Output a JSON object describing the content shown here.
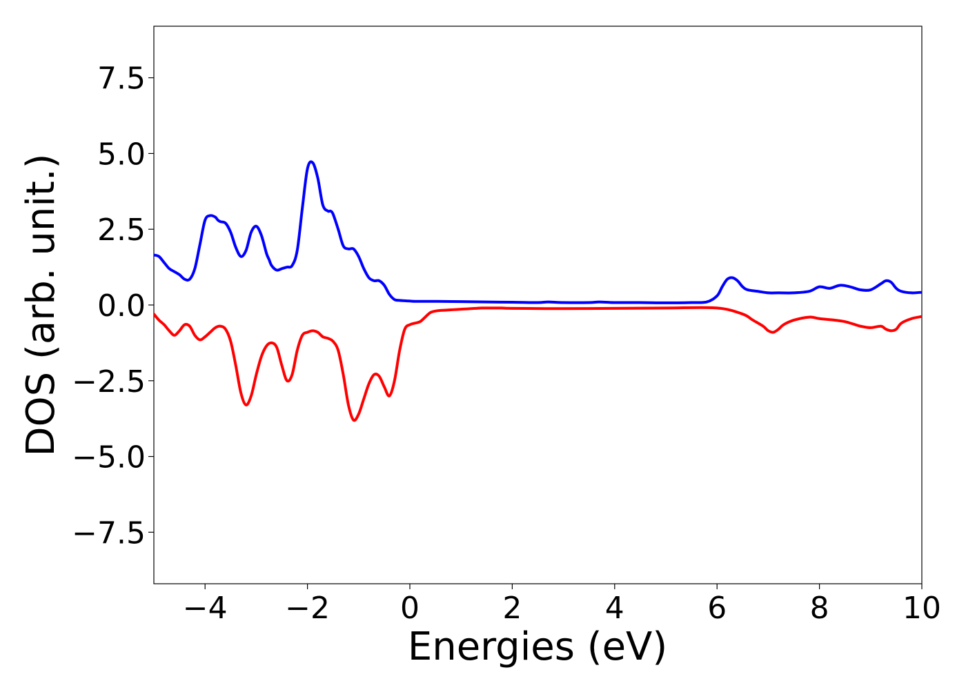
{
  "chart_data": {
    "type": "line",
    "title": "",
    "xlabel": "Energies (eV)",
    "ylabel": "DOS (arb. unit.)",
    "xlim": [
      -5,
      10
    ],
    "ylim": [
      -9.2,
      9.2
    ],
    "xticks": [
      -4,
      -2,
      0,
      2,
      4,
      6,
      8,
      10
    ],
    "xtick_labels": [
      "−4",
      "−2",
      "0",
      "2",
      "4",
      "6",
      "8",
      "10"
    ],
    "yticks": [
      -7.5,
      -5.0,
      -2.5,
      0.0,
      2.5,
      5.0,
      7.5
    ],
    "ytick_labels": [
      "−7.5",
      "−5.0",
      "−2.5",
      "0.0",
      "2.5",
      "5.0",
      "7.5"
    ],
    "grid": false,
    "legend": "none",
    "series": [
      {
        "color": "#0000ff",
        "x": [
          -5.0,
          -4.9,
          -4.8,
          -4.7,
          -4.6,
          -4.5,
          -4.4,
          -4.3,
          -4.2,
          -4.1,
          -4.0,
          -3.9,
          -3.8,
          -3.75,
          -3.7,
          -3.6,
          -3.5,
          -3.4,
          -3.3,
          -3.2,
          -3.1,
          -3.0,
          -2.9,
          -2.8,
          -2.75,
          -2.7,
          -2.6,
          -2.5,
          -2.4,
          -2.3,
          -2.2,
          -2.1,
          -2.0,
          -1.9,
          -1.8,
          -1.7,
          -1.6,
          -1.55,
          -1.5,
          -1.4,
          -1.3,
          -1.2,
          -1.1,
          -1.0,
          -0.9,
          -0.8,
          -0.7,
          -0.6,
          -0.5,
          -0.4,
          -0.3,
          -0.2,
          -0.1,
          0.0,
          0.1,
          0.2,
          0.3,
          0.4,
          0.5,
          1.0,
          1.5,
          2.0,
          2.5,
          2.7,
          3.0,
          3.5,
          3.7,
          4.0,
          4.5,
          5.0,
          5.5,
          5.8,
          6.0,
          6.1,
          6.2,
          6.3,
          6.4,
          6.5,
          6.6,
          6.8,
          7.0,
          7.2,
          7.5,
          7.8,
          8.0,
          8.2,
          8.4,
          8.6,
          8.8,
          9.0,
          9.2,
          9.3,
          9.4,
          9.5,
          9.6,
          9.8,
          10.0
        ],
        "y": [
          1.65,
          1.6,
          1.4,
          1.2,
          1.1,
          1.0,
          0.85,
          0.85,
          1.2,
          2.0,
          2.8,
          2.95,
          2.9,
          2.8,
          2.75,
          2.7,
          2.4,
          1.9,
          1.6,
          1.8,
          2.4,
          2.6,
          2.3,
          1.7,
          1.5,
          1.3,
          1.15,
          1.2,
          1.25,
          1.3,
          1.8,
          3.2,
          4.5,
          4.7,
          4.2,
          3.3,
          3.1,
          3.1,
          3.0,
          2.5,
          1.95,
          1.85,
          1.85,
          1.6,
          1.2,
          0.9,
          0.8,
          0.8,
          0.65,
          0.35,
          0.18,
          0.15,
          0.14,
          0.13,
          0.12,
          0.12,
          0.12,
          0.12,
          0.12,
          0.11,
          0.1,
          0.09,
          0.08,
          0.1,
          0.08,
          0.08,
          0.1,
          0.08,
          0.08,
          0.07,
          0.08,
          0.1,
          0.3,
          0.6,
          0.85,
          0.9,
          0.8,
          0.6,
          0.5,
          0.45,
          0.4,
          0.4,
          0.4,
          0.45,
          0.6,
          0.55,
          0.65,
          0.6,
          0.5,
          0.5,
          0.7,
          0.8,
          0.75,
          0.55,
          0.45,
          0.4,
          0.42
        ]
      },
      {
        "color": "#ff0000",
        "x": [
          -5.0,
          -4.9,
          -4.8,
          -4.7,
          -4.6,
          -4.5,
          -4.4,
          -4.3,
          -4.2,
          -4.1,
          -4.0,
          -3.9,
          -3.8,
          -3.7,
          -3.6,
          -3.5,
          -3.4,
          -3.3,
          -3.2,
          -3.1,
          -3.0,
          -2.9,
          -2.8,
          -2.7,
          -2.6,
          -2.5,
          -2.4,
          -2.3,
          -2.2,
          -2.1,
          -2.0,
          -1.9,
          -1.8,
          -1.7,
          -1.6,
          -1.5,
          -1.4,
          -1.3,
          -1.2,
          -1.1,
          -1.0,
          -0.9,
          -0.8,
          -0.7,
          -0.6,
          -0.5,
          -0.4,
          -0.3,
          -0.2,
          -0.1,
          0.0,
          0.1,
          0.2,
          0.3,
          0.4,
          0.5,
          0.6,
          0.7,
          0.8,
          0.9,
          1.0,
          1.1,
          1.2,
          1.3,
          1.4,
          1.5,
          1.6,
          1.7,
          1.8,
          2.0,
          3.0,
          4.0,
          5.0,
          6.0,
          6.5,
          6.7,
          6.9,
          7.0,
          7.1,
          7.2,
          7.3,
          7.5,
          7.8,
          8.0,
          8.3,
          8.5,
          8.7,
          8.8,
          9.0,
          9.2,
          9.3,
          9.4,
          9.5,
          9.6,
          9.8,
          10.0
        ],
        "y": [
          -0.3,
          -0.5,
          -0.65,
          -0.85,
          -1.0,
          -0.85,
          -0.65,
          -0.7,
          -1.0,
          -1.15,
          -1.05,
          -0.9,
          -0.75,
          -0.7,
          -0.8,
          -1.2,
          -2.0,
          -2.9,
          -3.3,
          -3.0,
          -2.3,
          -1.7,
          -1.35,
          -1.25,
          -1.4,
          -2.0,
          -2.5,
          -2.3,
          -1.5,
          -1.0,
          -0.9,
          -0.85,
          -0.9,
          -1.05,
          -1.1,
          -1.2,
          -1.5,
          -2.3,
          -3.3,
          -3.8,
          -3.6,
          -3.1,
          -2.6,
          -2.3,
          -2.35,
          -2.7,
          -3.0,
          -2.5,
          -1.5,
          -0.8,
          -0.65,
          -0.6,
          -0.55,
          -0.4,
          -0.25,
          -0.2,
          -0.18,
          -0.17,
          -0.16,
          -0.15,
          -0.14,
          -0.13,
          -0.12,
          -0.11,
          -0.1,
          -0.1,
          -0.1,
          -0.1,
          -0.1,
          -0.11,
          -0.12,
          -0.11,
          -0.1,
          -0.1,
          -0.3,
          -0.5,
          -0.7,
          -0.85,
          -0.9,
          -0.8,
          -0.65,
          -0.5,
          -0.4,
          -0.45,
          -0.5,
          -0.55,
          -0.65,
          -0.7,
          -0.75,
          -0.7,
          -0.8,
          -0.85,
          -0.8,
          -0.6,
          -0.45,
          -0.38
        ]
      }
    ]
  }
}
